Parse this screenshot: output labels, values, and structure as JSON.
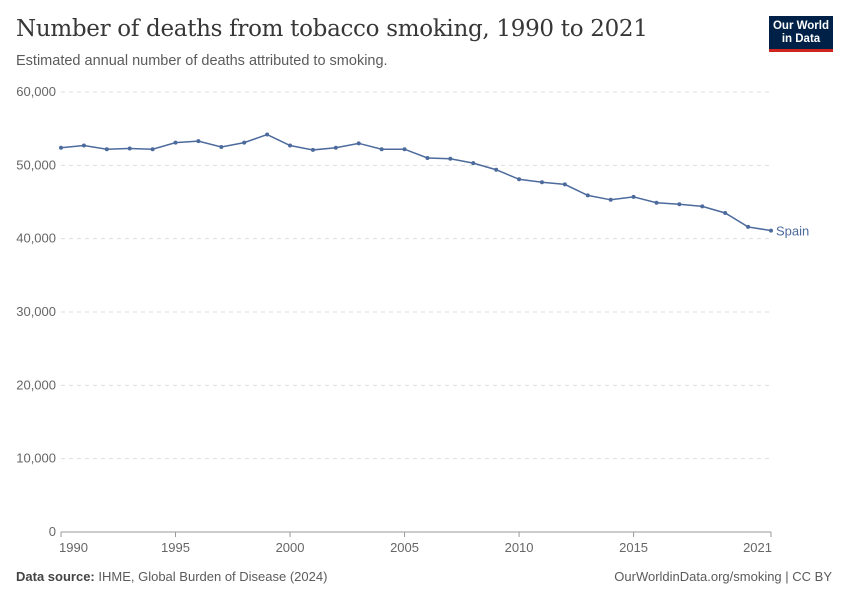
{
  "header": {
    "title": "Number of deaths from tobacco smoking, 1990 to 2021",
    "subtitle": "Estimated annual number of deaths attributed to smoking.",
    "logo": "Our World in Data"
  },
  "footer": {
    "source_label": "Data source:",
    "source": "IHME, Global Burden of Disease (2024)",
    "credit": "OurWorldinData.org/smoking | CC BY"
  },
  "chart_data": {
    "type": "line",
    "title": "Number of deaths from tobacco smoking, 1990 to 2021",
    "xlim": [
      1990,
      2021
    ],
    "ylim": [
      0,
      60000
    ],
    "xticks": [
      "1990",
      "1995",
      "2000",
      "2005",
      "2010",
      "2015",
      "2021"
    ],
    "yticks": [
      "0",
      "10,000",
      "20,000",
      "30,000",
      "40,000",
      "50,000",
      "60,000"
    ],
    "grid": "horizontal dashed",
    "series": [
      {
        "name": "Spain",
        "color": "#4c6a9c",
        "x": [
          1990,
          1991,
          1992,
          1993,
          1994,
          1995,
          1996,
          1997,
          1998,
          1999,
          2000,
          2001,
          2002,
          2003,
          2004,
          2005,
          2006,
          2007,
          2008,
          2009,
          2010,
          2011,
          2012,
          2013,
          2014,
          2015,
          2016,
          2017,
          2018,
          2019,
          2020,
          2021
        ],
        "values": [
          52400,
          52700,
          52200,
          52300,
          52200,
          53100,
          53300,
          52500,
          53100,
          54200,
          52700,
          52100,
          52400,
          53000,
          52200,
          52200,
          51000,
          50900,
          50300,
          49400,
          48100,
          47700,
          47400,
          45900,
          45300,
          45700,
          44900,
          44700,
          44400,
          43500,
          41600,
          41100
        ]
      }
    ]
  }
}
